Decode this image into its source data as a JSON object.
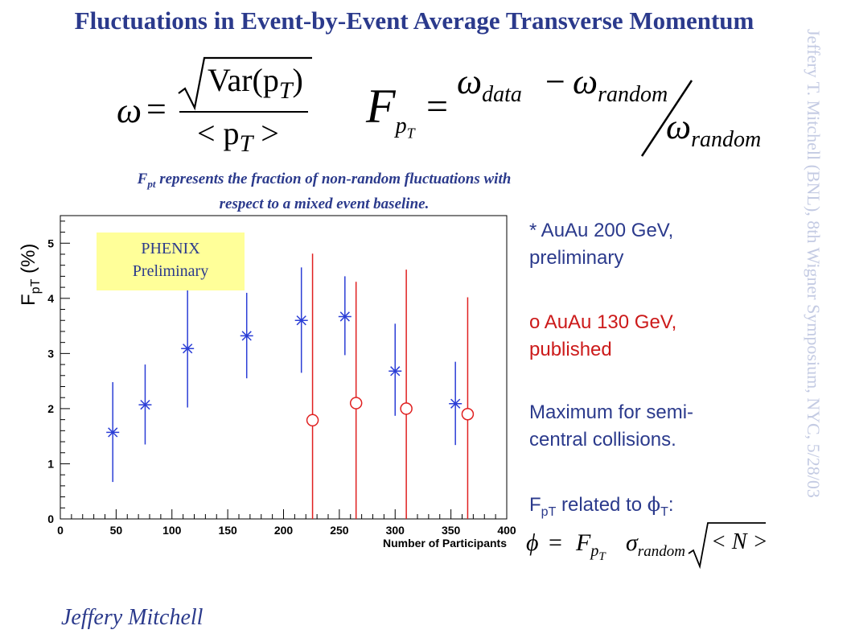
{
  "title": "Fluctuations in Event-by-Event Average Transverse Momentum",
  "side_note": "Jeffery T. Mitchell (BNL), 8th Wigner Symposium, NYC, 5/28/03",
  "formula_omega": {
    "lhs": "ω",
    "eq": "=",
    "numerator": "Var(p",
    "num_sub": "T",
    "num_close": ")",
    "denominator": "< p",
    "den_sub": "T",
    "den_close": " >"
  },
  "formula_F": {
    "lhs": "F",
    "lhs_sub": "p",
    "lhs_subsub": "T",
    "eq": "=",
    "term1": "ω",
    "term1_sub": "data",
    "minus": "−",
    "term2": "ω",
    "term2_sub": "random",
    "slash": "/",
    "term3": "ω",
    "term3_sub": "random"
  },
  "subtitle": {
    "line1_main": "F",
    "line1_sub": "pt",
    "line1_rest": " represents the fraction of non-random fluctuations with",
    "line2": "respect to a mixed event baseline."
  },
  "bullets": {
    "b1_line1": "* AuAu 200 GeV,",
    "b1_line2": "preliminary",
    "b2_line1": "o AuAu 130 GeV,",
    "b2_line2": "published",
    "b3_line1": "Maximum for semi-",
    "b3_line2": "central collisions.",
    "b4_main": "F",
    "b4_sub": "pT",
    "b4_mid": " related to ",
    "b4_phi": "ϕ",
    "b4_phi_sub": "T",
    "b4_end": ":"
  },
  "formula_phi": {
    "lhs": "ϕ",
    "eq": "=",
    "F": "F",
    "F_sub": "p",
    "F_subsub": "T",
    "sigma": "σ",
    "sigma_sub": "random",
    "radicand": "< N >"
  },
  "author": "Jeffery Mitchell",
  "preliminary_box": {
    "line1": "PHENIX",
    "line2": "Preliminary"
  },
  "colors": {
    "title": "#2b3a8c",
    "series_200": "#2b3ed6",
    "series_130": "#e02020",
    "box": "#ffff99",
    "side": "#c4cbe3"
  },
  "chart_data": {
    "type": "scatter",
    "xlabel": "Number of Participants",
    "ylabel_main": "F",
    "ylabel_sub": "pT",
    "ylabel_unit": " (%)",
    "xlim": [
      0,
      400
    ],
    "ylim": [
      0,
      5.5
    ],
    "x_ticks": [
      0,
      50,
      100,
      150,
      200,
      250,
      300,
      350,
      400
    ],
    "y_ticks": [
      0,
      1,
      2,
      3,
      4,
      5
    ],
    "grid": false,
    "series": [
      {
        "marker": "star",
        "color": "#2b3ed6",
        "points": [
          {
            "x": 47,
            "y": 1.57,
            "lo": 0.67,
            "hi": 2.48
          },
          {
            "x": 76,
            "y": 2.07,
            "lo": 1.35,
            "hi": 2.8
          },
          {
            "x": 114,
            "y": 3.09,
            "lo": 2.02,
            "hi": 4.16
          },
          {
            "x": 167,
            "y": 3.32,
            "lo": 2.55,
            "hi": 4.1
          },
          {
            "x": 216,
            "y": 3.6,
            "lo": 2.65,
            "hi": 4.56
          },
          {
            "x": 255,
            "y": 3.67,
            "lo": 2.97,
            "hi": 4.4
          },
          {
            "x": 300,
            "y": 2.68,
            "lo": 1.87,
            "hi": 3.54
          },
          {
            "x": 354,
            "y": 2.09,
            "lo": 1.34,
            "hi": 2.85
          }
        ]
      },
      {
        "marker": "circle",
        "color": "#e02020",
        "points": [
          {
            "x": 226,
            "y": 1.79,
            "lo": 0,
            "hi": 4.81
          },
          {
            "x": 265,
            "y": 2.1,
            "lo": 0,
            "hi": 4.3
          },
          {
            "x": 310,
            "y": 2.0,
            "lo": 0,
            "hi": 4.52
          },
          {
            "x": 365,
            "y": 1.9,
            "lo": 0,
            "hi": 4.02
          }
        ]
      }
    ]
  }
}
